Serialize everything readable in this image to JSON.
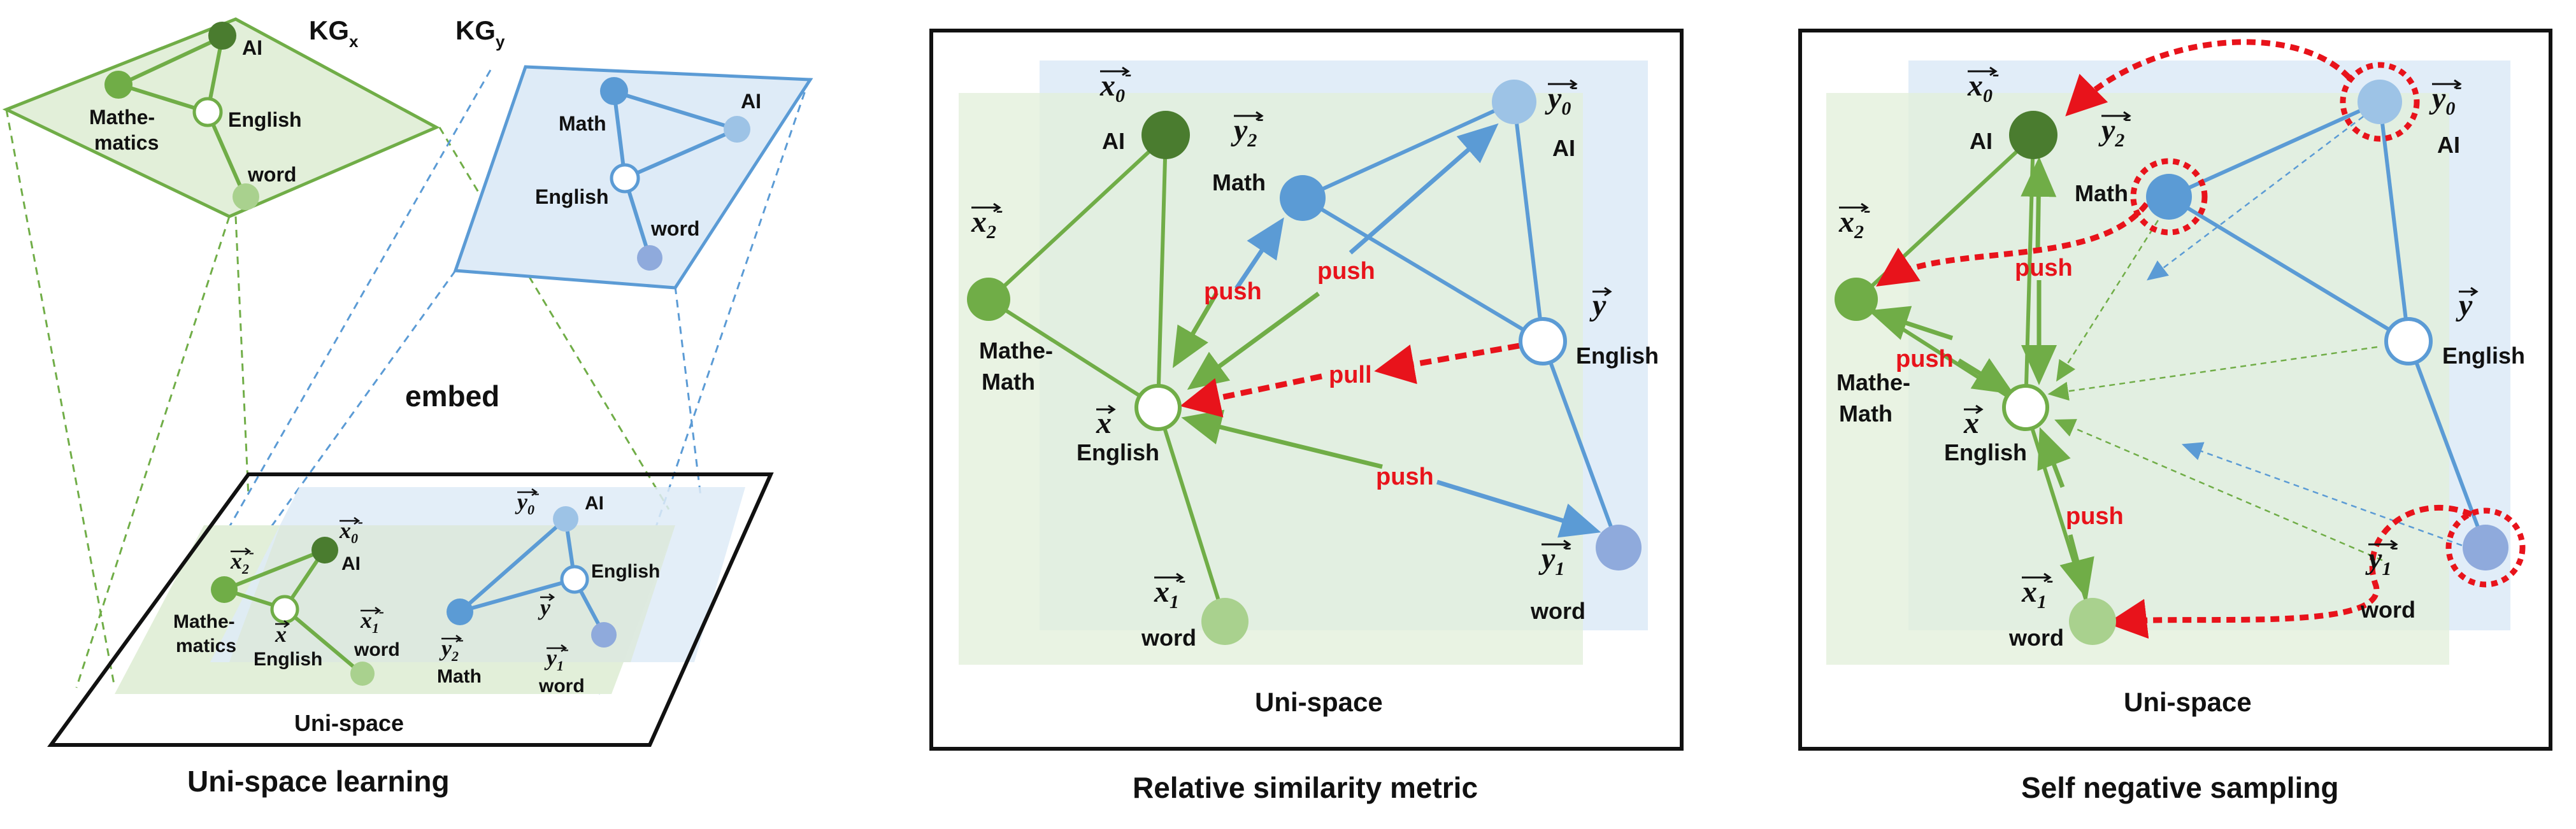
{
  "colors": {
    "green_node_dark": "#4a7c2f",
    "green_node": "#70ad47",
    "green_node_light": "#a9d18e",
    "blue_node": "#5b9bd5",
    "blue_node_light": "#9dc3e6",
    "blue_node_violet": "#8faadc",
    "green_edge": "#70ad47",
    "blue_edge": "#5b9bd5",
    "red": "#e8131b",
    "green_plane": "#e2efd9",
    "blue_plane": "#deebf7"
  },
  "panel1": {
    "title": "Uni-space learning",
    "kgx": "KG",
    "kgx_sub": "x",
    "kgy": "KG",
    "kgy_sub": "y",
    "embed": "embed",
    "unispace": "Uni-space",
    "kgx_nodes": {
      "ai": "AI",
      "english": "English",
      "math_a": "Mathe-",
      "math_b": "matics",
      "word": "word"
    },
    "kgy_nodes": {
      "math": "Math",
      "ai": "AI",
      "english": "English",
      "word": "word"
    },
    "uni_labels": {
      "x0": "x",
      "x0_sub": "0",
      "x0_sup": "-",
      "ai_g": "AI",
      "x2": "x",
      "x2_sub": "2",
      "x2_sup": "-",
      "math_a": "Mathe-",
      "math_b": "matics",
      "x": "x",
      "english_g": "English",
      "x1": "x",
      "x1_sub": "1",
      "x1_sup": "-",
      "word_g": "word",
      "y0": "y",
      "y0_sub": "0",
      "y0_sup": "-",
      "ai_b": "AI",
      "y": "y",
      "english_b": "English",
      "y2": "y",
      "y2_sub": "2",
      "y2_sup": "-",
      "math_b2": "Math",
      "y1": "y",
      "y1_sub": "1",
      "y1_sup": "-",
      "word_b": "word"
    }
  },
  "panel2": {
    "title": "Relative similarity metric",
    "unispace": "Uni-space",
    "labels": {
      "x0": "x",
      "x0_sub": "0",
      "x0_sup": "-",
      "ai_g": "AI",
      "x2": "x",
      "x2_sub": "2",
      "x2_sup": "-",
      "math_a": "Mathe-",
      "math_b": "Math",
      "x": "x",
      "english_g": "English",
      "x1": "x",
      "x1_sub": "1",
      "x1_sup": "-",
      "word_g": "word",
      "y2": "y",
      "y2_sub": "2",
      "y2_sup": "-",
      "y0": "y",
      "y0_sub": "0",
      "y0_sup": "-",
      "ai_b": "AI",
      "y": "y",
      "english_b": "English",
      "y1": "y",
      "y1_sub": "1",
      "y1_sup": "-",
      "word_b": "word"
    },
    "push": "push",
    "pull": "pull"
  },
  "panel3": {
    "title": "Self negative sampling",
    "unispace": "Uni-space",
    "labels": {
      "x0": "x",
      "x0_sub": "0",
      "x0_sup": "-",
      "ai_g": "AI",
      "x2": "x",
      "x2_sub": "2",
      "x2_sup": "-",
      "math_a": "Mathe-",
      "math_b": "Math",
      "x": "x",
      "english_g": "English",
      "x1": "x",
      "x1_sub": "1",
      "x1_sup": "-",
      "word_g": "word",
      "y2": "y",
      "y2_sub": "2",
      "y2_sup": "-",
      "y0": "y",
      "y0_sub": "0",
      "y0_sup": "-",
      "ai_b": "AI",
      "y": "y",
      "english_b": "English",
      "y1": "y",
      "y1_sub": "1",
      "y1_sup": "-",
      "word_b": "word"
    },
    "push": "push"
  }
}
